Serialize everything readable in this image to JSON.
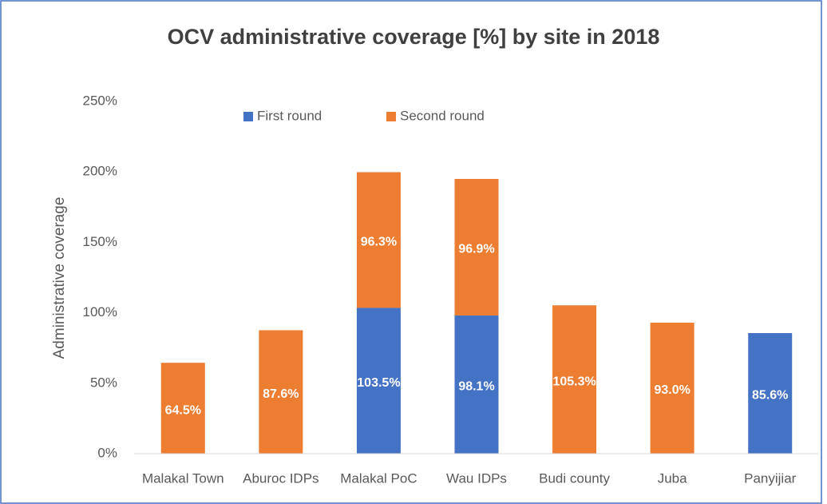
{
  "chart_data": {
    "type": "stacked_bar",
    "title": "OCV administrative coverage [%] by site in 2018",
    "y_label": "Administrative coverage",
    "categories": [
      "Malakal Town",
      "Aburoc IDPs",
      "Malakal PoC",
      "Wau IDPs",
      "Budi county",
      "Juba",
      "Panyijiar"
    ],
    "series": [
      {
        "name": "First round",
        "color": "#4472c4",
        "values": [
          null,
          null,
          103.5,
          98.1,
          null,
          null,
          85.6
        ],
        "value_labels": [
          null,
          null,
          "103.5%",
          "98.1%",
          null,
          null,
          "85.6%"
        ]
      },
      {
        "name": "Second round",
        "color": "#ed7d31",
        "values": [
          64.5,
          87.6,
          96.3,
          96.9,
          105.3,
          93.0,
          null
        ],
        "value_labels": [
          "64.5%",
          "87.6%",
          "96.3%",
          "96.9%",
          "105.3%",
          "93.0%",
          null
        ]
      }
    ],
    "ylim": [
      0,
      250
    ],
    "yticks": [
      {
        "value": 0,
        "label": "0%"
      },
      {
        "value": 50,
        "label": "50%"
      },
      {
        "value": 100,
        "label": "100%"
      },
      {
        "value": 150,
        "label": "150%"
      },
      {
        "value": 200,
        "label": "200%"
      },
      {
        "value": 250,
        "label": "250%"
      }
    ],
    "legend": "top"
  }
}
